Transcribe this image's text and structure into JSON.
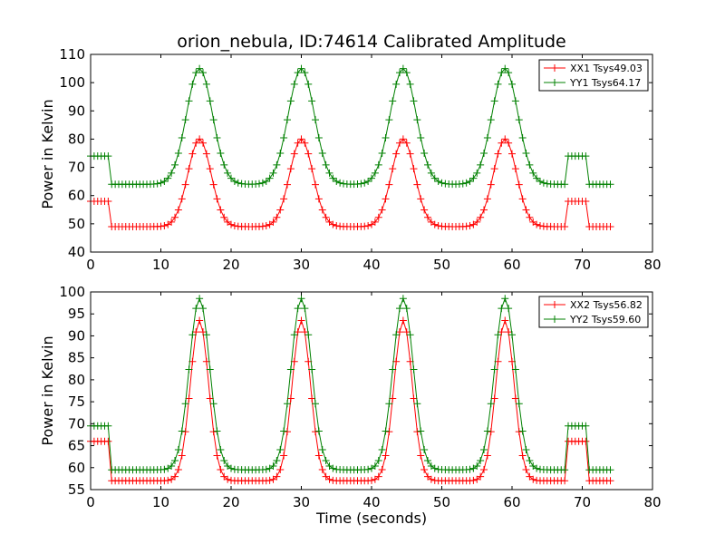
{
  "figure": {
    "title": "orion_nebula, ID:74614 Calibrated Amplitude"
  },
  "chart_data": [
    {
      "type": "line",
      "ylabel": "Power in Kelvin",
      "xlabel": "",
      "xlim": [
        0,
        80
      ],
      "ylim": [
        40,
        110
      ],
      "xticks": [
        0,
        10,
        20,
        30,
        40,
        50,
        60,
        70,
        80
      ],
      "yticks": [
        40,
        50,
        60,
        70,
        80,
        90,
        100,
        110
      ],
      "legend": "top-right",
      "marker": "+",
      "series": [
        {
          "name": "XX1 Tsys49.03",
          "color": "#ff0000",
          "model": {
            "base": 49,
            "peak": 80,
            "width": 1.65,
            "high": 58
          }
        },
        {
          "name": "YY1 Tsys64.17",
          "color": "#008000",
          "model": {
            "base": 64,
            "peak": 105,
            "width": 1.85,
            "high": 74
          }
        }
      ]
    },
    {
      "type": "line",
      "ylabel": "Power in Kelvin",
      "xlabel": "Time (seconds)",
      "xlim": [
        0,
        80
      ],
      "ylim": [
        55,
        100
      ],
      "xticks": [
        0,
        10,
        20,
        30,
        40,
        50,
        60,
        70,
        80
      ],
      "yticks": [
        55,
        60,
        65,
        70,
        75,
        80,
        85,
        90,
        95,
        100
      ],
      "legend": "top-right",
      "marker": "+",
      "series": [
        {
          "name": "XX2 Tsys56.82",
          "color": "#ff0000",
          "model": {
            "base": 57,
            "peak": 93.5,
            "width": 1.3,
            "high": 66
          }
        },
        {
          "name": "YY2 Tsys59.60",
          "color": "#008000",
          "model": {
            "base": 59.5,
            "peak": 98.5,
            "width": 1.45,
            "high": 69.5
          }
        }
      ]
    }
  ],
  "shared": {
    "x_start": 0,
    "x_end": 74,
    "x_step": 0.5,
    "peak_centers": [
      15.5,
      30,
      44.5,
      59
    ],
    "high_segments": [
      [
        0,
        2.75
      ],
      [
        68,
        70.5
      ]
    ]
  }
}
